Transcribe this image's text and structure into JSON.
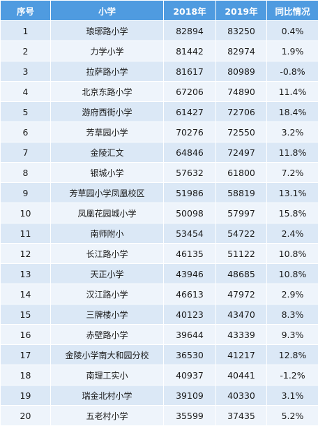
{
  "table": {
    "headers": [
      "序号",
      "小学",
      "2018年",
      "2019年",
      "同比情况"
    ],
    "rows": [
      [
        "1",
        "琅琊路小学",
        "82894",
        "83250",
        "0.4%"
      ],
      [
        "2",
        "力学小学",
        "81442",
        "82974",
        "1.9%"
      ],
      [
        "3",
        "拉萨路小学",
        "81617",
        "80989",
        "-0.8%"
      ],
      [
        "4",
        "北京东路小学",
        "67206",
        "74890",
        "11.4%"
      ],
      [
        "5",
        "游府西街小学",
        "61427",
        "72706",
        "18.4%"
      ],
      [
        "6",
        "芳草园小学",
        "70276",
        "72550",
        "3.2%"
      ],
      [
        "7",
        "金陵汇文",
        "64846",
        "72497",
        "11.8%"
      ],
      [
        "8",
        "银城小学",
        "57632",
        "61800",
        "7.2%"
      ],
      [
        "9",
        "芳草园小学凤凰校区",
        "51986",
        "58819",
        "13.1%"
      ],
      [
        "10",
        "凤凰花园城小学",
        "50098",
        "57997",
        "15.8%"
      ],
      [
        "11",
        "南师附小",
        "53454",
        "54722",
        "2.4%"
      ],
      [
        "12",
        "长江路小学",
        "46135",
        "51122",
        "10.8%"
      ],
      [
        "13",
        "天正小学",
        "43946",
        "48685",
        "10.8%"
      ],
      [
        "14",
        "汉江路小学",
        "46613",
        "47972",
        "2.9%"
      ],
      [
        "15",
        "三牌楼小学",
        "40123",
        "43470",
        "8.3%"
      ],
      [
        "16",
        "赤壁路小学",
        "39644",
        "43339",
        "9.3%"
      ],
      [
        "17",
        "金陵小学南大和园分校",
        "36530",
        "41217",
        "12.8%"
      ],
      [
        "18",
        "南理工实小",
        "40937",
        "40441",
        "-1.2%"
      ],
      [
        "19",
        "瑞金北村小学",
        "39109",
        "40330",
        "3.1%"
      ],
      [
        "20",
        "五老村小学",
        "35599",
        "37435",
        "5.2%"
      ]
    ]
  },
  "colors": {
    "header_bg": "#4f9be0",
    "header_text": "#ffffff",
    "row_odd_bg": "#dbe8f6",
    "row_even_bg": "#eef4fb",
    "grid_line": "#ffffff"
  }
}
